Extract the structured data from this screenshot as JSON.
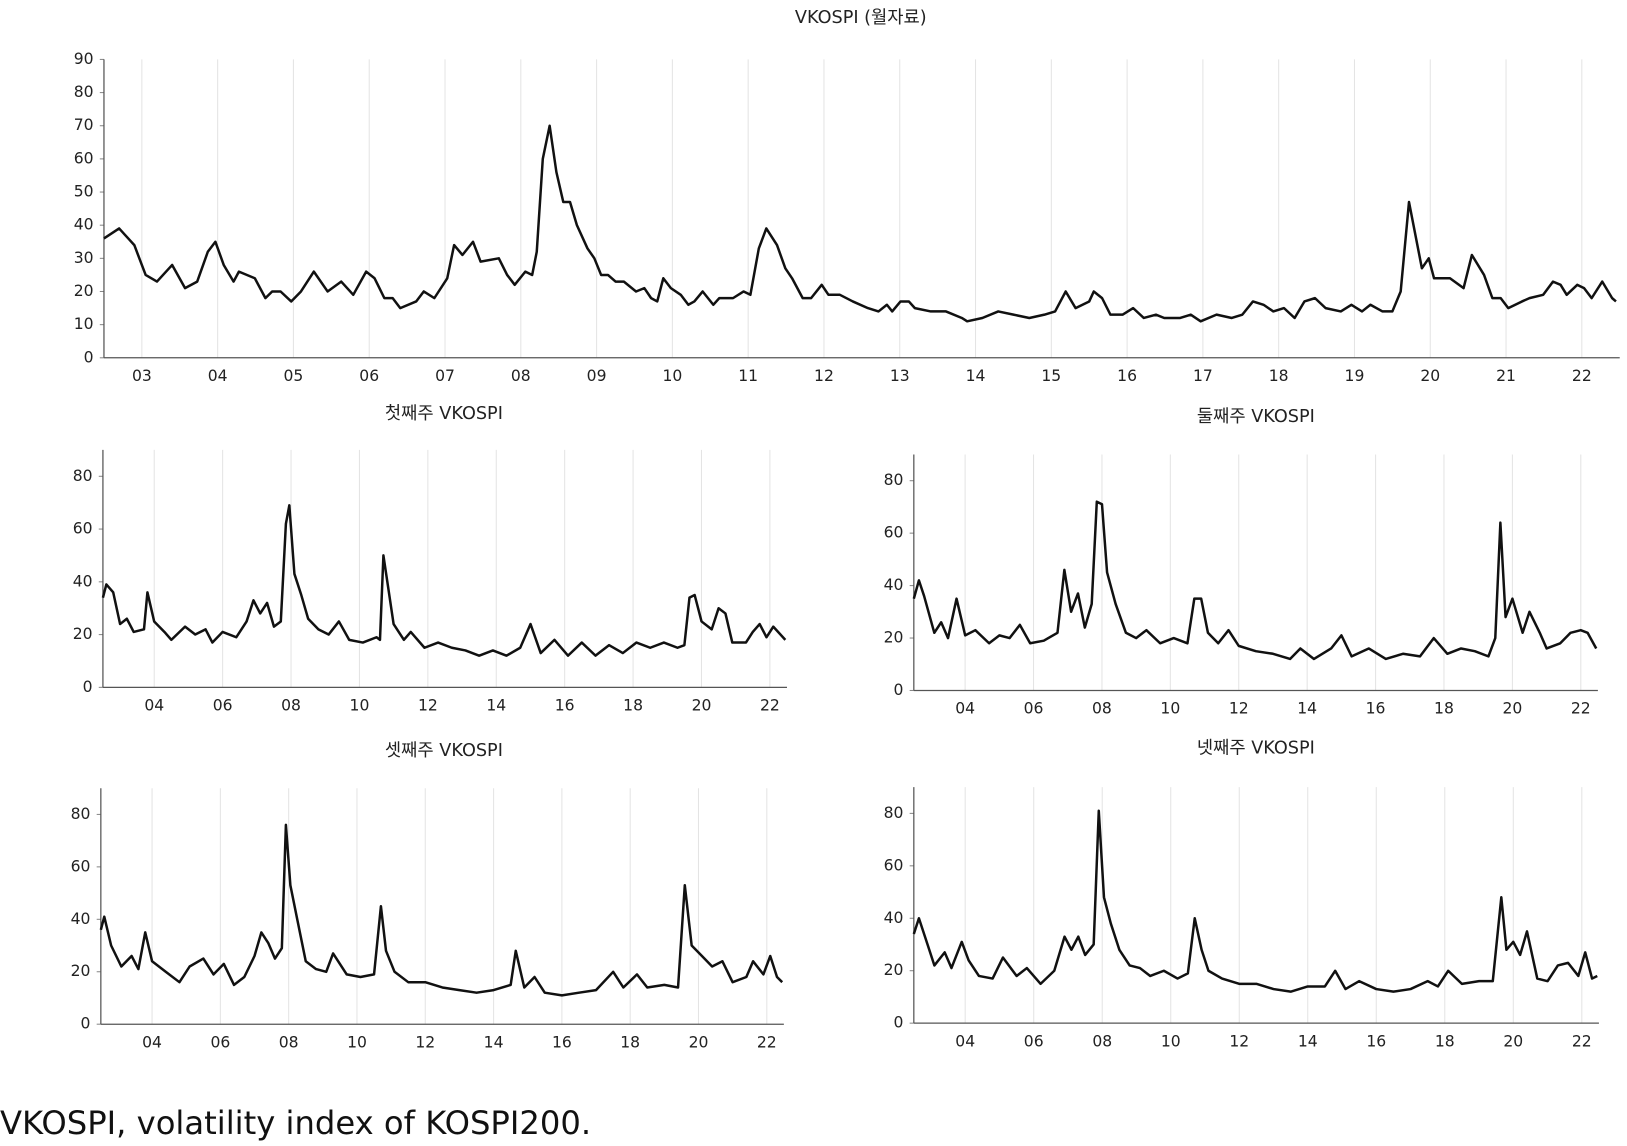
{
  "chart_data": [
    {
      "type": "line",
      "title": "VKOSPI (월자료)",
      "color": "#111111",
      "grid": "x",
      "xlim": [
        2003,
        2023
      ],
      "ylim": [
        0,
        90
      ],
      "yticks": [
        0,
        10,
        20,
        30,
        40,
        50,
        60,
        70,
        80,
        90
      ],
      "xticks": [
        {
          "value": 2003.5,
          "label": "03"
        },
        {
          "value": 2004.5,
          "label": "04"
        },
        {
          "value": 2005.5,
          "label": "05"
        },
        {
          "value": 2006.5,
          "label": "06"
        },
        {
          "value": 2007.5,
          "label": "07"
        },
        {
          "value": 2008.5,
          "label": "08"
        },
        {
          "value": 2009.5,
          "label": "09"
        },
        {
          "value": 2010.5,
          "label": "10"
        },
        {
          "value": 2011.5,
          "label": "11"
        },
        {
          "value": 2012.5,
          "label": "12"
        },
        {
          "value": 2013.5,
          "label": "13"
        },
        {
          "value": 2014.5,
          "label": "14"
        },
        {
          "value": 2015.5,
          "label": "15"
        },
        {
          "value": 2016.5,
          "label": "16"
        },
        {
          "value": 2017.5,
          "label": "17"
        },
        {
          "value": 2018.5,
          "label": "18"
        },
        {
          "value": 2019.5,
          "label": "19"
        },
        {
          "value": 2020.5,
          "label": "20"
        },
        {
          "value": 2021.5,
          "label": "21"
        },
        {
          "value": 2022.5,
          "label": "22"
        }
      ],
      "x": [
        2003.0,
        2003.2,
        2003.4,
        2003.55,
        2003.7,
        2003.9,
        2004.07,
        2004.23,
        2004.37,
        2004.47,
        2004.58,
        2004.71,
        2004.78,
        2004.99,
        2005.13,
        2005.22,
        2005.33,
        2005.47,
        2005.6,
        2005.77,
        2005.95,
        2006.13,
        2006.29,
        2006.46,
        2006.57,
        2006.7,
        2006.81,
        2006.91,
        2007.12,
        2007.22,
        2007.36,
        2007.53,
        2007.62,
        2007.73,
        2007.87,
        2007.97,
        2008.21,
        2008.32,
        2008.42,
        2008.56,
        2008.65,
        2008.71,
        2008.79,
        2008.88,
        2008.97,
        2009.06,
        2009.15,
        2009.24,
        2009.38,
        2009.47,
        2009.56,
        2009.65,
        2009.75,
        2009.86,
        2010.02,
        2010.13,
        2010.22,
        2010.3,
        2010.38,
        2010.48,
        2010.61,
        2010.71,
        2010.79,
        2010.9,
        2011.04,
        2011.12,
        2011.3,
        2011.44,
        2011.53,
        2011.64,
        2011.74,
        2011.88,
        2011.99,
        2012.08,
        2012.22,
        2012.33,
        2012.47,
        2012.56,
        2012.71,
        2012.88,
        2013.08,
        2013.22,
        2013.33,
        2013.4,
        2013.51,
        2013.62,
        2013.7,
        2013.91,
        2014.11,
        2014.32,
        2014.39,
        2014.59,
        2014.8,
        2015.0,
        2015.21,
        2015.41,
        2015.55,
        2015.69,
        2015.82,
        2016.0,
        2016.06,
        2016.17,
        2016.28,
        2016.44,
        2016.58,
        2016.72,
        2016.88,
        2016.99,
        2017.2,
        2017.34,
        2017.47,
        2017.68,
        2017.88,
        2018.02,
        2018.16,
        2018.3,
        2018.43,
        2018.57,
        2018.71,
        2018.84,
        2018.98,
        2019.12,
        2019.32,
        2019.46,
        2019.6,
        2019.71,
        2019.87,
        2020.0,
        2020.11,
        2020.22,
        2020.39,
        2020.48,
        2020.55,
        2020.76,
        2020.94,
        2021.05,
        2021.21,
        2021.32,
        2021.43,
        2021.53,
        2021.71,
        2021.81,
        2021.99,
        2022.12,
        2022.22,
        2022.3,
        2022.44,
        2022.53,
        2022.63,
        2022.77,
        2022.9,
        2022.95
      ],
      "values": [
        36,
        39,
        34,
        25,
        23,
        28,
        21,
        23,
        32,
        35,
        28,
        23,
        26,
        24,
        18,
        20,
        20,
        17,
        20,
        26,
        20,
        23,
        19,
        26,
        24,
        18,
        18,
        15,
        17,
        20,
        18,
        24,
        34,
        31,
        35,
        29,
        30,
        25,
        22,
        26,
        25,
        32,
        60,
        70,
        56,
        47,
        47,
        40,
        33,
        30,
        25,
        25,
        23,
        23,
        20,
        21,
        18,
        17,
        24,
        21,
        19,
        16,
        17,
        20,
        16,
        18,
        18,
        20,
        19,
        33,
        39,
        34,
        27,
        24,
        18,
        18,
        22,
        19,
        19,
        17,
        15,
        14,
        16,
        14,
        17,
        17,
        15,
        14,
        14,
        12,
        11,
        12,
        14,
        13,
        12,
        13,
        14,
        20,
        15,
        17,
        20,
        18,
        13,
        13,
        15,
        12,
        13,
        12,
        12,
        13,
        11,
        13,
        12,
        13,
        17,
        16,
        14,
        15,
        12,
        17,
        18,
        15,
        14,
        16,
        14,
        16,
        14,
        14,
        20,
        47,
        27,
        30,
        24,
        24,
        21,
        31,
        25,
        18,
        18,
        15,
        17,
        18,
        19,
        23,
        22,
        19,
        22,
        21,
        18,
        23,
        18,
        17
      ]
    },
    {
      "type": "line",
      "title": "첫째주 VKOSPI",
      "color": "#111111",
      "grid": "x",
      "xlim": [
        2003,
        2023
      ],
      "ylim": [
        0,
        90
      ],
      "yticks": [
        0,
        20,
        40,
        60,
        80
      ],
      "xticks": [
        {
          "value": 2004.5,
          "label": "04"
        },
        {
          "value": 2006.5,
          "label": "06"
        },
        {
          "value": 2008.5,
          "label": "08"
        },
        {
          "value": 2010.5,
          "label": "10"
        },
        {
          "value": 2012.5,
          "label": "12"
        },
        {
          "value": 2014.5,
          "label": "14"
        },
        {
          "value": 2016.5,
          "label": "16"
        },
        {
          "value": 2018.5,
          "label": "18"
        },
        {
          "value": 2020.5,
          "label": "20"
        },
        {
          "value": 2022.5,
          "label": "22"
        }
      ],
      "x": [
        2003.0,
        2003.1,
        2003.3,
        2003.5,
        2003.7,
        2003.9,
        2004.2,
        2004.3,
        2004.5,
        2004.8,
        2005.0,
        2005.4,
        2005.7,
        2006.0,
        2006.2,
        2006.5,
        2006.9,
        2007.2,
        2007.4,
        2007.6,
        2007.8,
        2008.0,
        2008.2,
        2008.35,
        2008.45,
        2008.6,
        2008.8,
        2009.0,
        2009.3,
        2009.6,
        2009.9,
        2010.2,
        2010.6,
        2011.0,
        2011.1,
        2011.2,
        2011.35,
        2011.5,
        2011.8,
        2012.0,
        2012.4,
        2012.8,
        2013.2,
        2013.6,
        2014.0,
        2014.4,
        2014.8,
        2015.2,
        2015.5,
        2015.8,
        2016.2,
        2016.6,
        2017.0,
        2017.4,
        2017.8,
        2018.2,
        2018.6,
        2019.0,
        2019.4,
        2019.8,
        2020.0,
        2020.15,
        2020.3,
        2020.5,
        2020.8,
        2021.0,
        2021.2,
        2021.4,
        2021.8,
        2022.0,
        2022.2,
        2022.4,
        2022.6,
        2022.95
      ],
      "values": [
        34,
        39,
        36,
        24,
        26,
        21,
        22,
        36,
        25,
        21,
        18,
        23,
        20,
        22,
        17,
        21,
        19,
        25,
        33,
        28,
        32,
        23,
        25,
        62,
        69,
        43,
        35,
        26,
        22,
        20,
        25,
        18,
        17,
        19,
        18,
        50,
        37,
        24,
        18,
        21,
        15,
        17,
        15,
        14,
        12,
        14,
        12,
        15,
        24,
        13,
        18,
        12,
        17,
        12,
        16,
        13,
        17,
        15,
        17,
        15,
        16,
        34,
        35,
        25,
        22,
        30,
        28,
        17,
        17,
        21,
        24,
        19,
        23,
        18
      ]
    },
    {
      "type": "line",
      "title": "둘째주 VKOSPI",
      "color": "#111111",
      "grid": "x",
      "xlim": [
        2003,
        2023
      ],
      "ylim": [
        0,
        90
      ],
      "yticks": [
        0,
        20,
        40,
        60,
        80
      ],
      "xticks": [
        {
          "value": 2004.5,
          "label": "04"
        },
        {
          "value": 2006.5,
          "label": "06"
        },
        {
          "value": 2008.5,
          "label": "08"
        },
        {
          "value": 2010.5,
          "label": "10"
        },
        {
          "value": 2012.5,
          "label": "12"
        },
        {
          "value": 2014.5,
          "label": "14"
        },
        {
          "value": 2016.5,
          "label": "16"
        },
        {
          "value": 2018.5,
          "label": "18"
        },
        {
          "value": 2020.5,
          "label": "20"
        },
        {
          "value": 2022.5,
          "label": "22"
        }
      ],
      "x": [
        2003.0,
        2003.15,
        2003.3,
        2003.6,
        2003.8,
        2004.0,
        2004.25,
        2004.5,
        2004.8,
        2005.2,
        2005.5,
        2005.8,
        2006.1,
        2006.4,
        2006.8,
        2007.2,
        2007.4,
        2007.6,
        2007.8,
        2008.0,
        2008.2,
        2008.35,
        2008.5,
        2008.65,
        2008.9,
        2009.2,
        2009.5,
        2009.8,
        2010.2,
        2010.6,
        2011.0,
        2011.2,
        2011.4,
        2011.6,
        2011.9,
        2012.2,
        2012.5,
        2013.0,
        2013.5,
        2014.0,
        2014.3,
        2014.7,
        2015.2,
        2015.5,
        2015.8,
        2016.3,
        2016.8,
        2017.3,
        2017.8,
        2018.2,
        2018.6,
        2019.0,
        2019.4,
        2019.8,
        2020.0,
        2020.15,
        2020.3,
        2020.5,
        2020.8,
        2021.0,
        2021.3,
        2021.5,
        2021.9,
        2022.2,
        2022.5,
        2022.7,
        2022.95
      ],
      "values": [
        35,
        42,
        36,
        22,
        26,
        20,
        35,
        21,
        23,
        18,
        21,
        20,
        25,
        18,
        19,
        22,
        46,
        30,
        37,
        24,
        33,
        72,
        71,
        45,
        33,
        22,
        20,
        23,
        18,
        20,
        18,
        35,
        35,
        22,
        18,
        23,
        17,
        15,
        14,
        12,
        16,
        12,
        16,
        21,
        13,
        16,
        12,
        14,
        13,
        20,
        14,
        16,
        15,
        13,
        20,
        64,
        28,
        35,
        22,
        30,
        22,
        16,
        18,
        22,
        23,
        22,
        16
      ]
    },
    {
      "type": "line",
      "title": "셋째주 VKOSPI",
      "color": "#111111",
      "grid": "x",
      "xlim": [
        2003,
        2023
      ],
      "ylim": [
        0,
        90
      ],
      "yticks": [
        0,
        20,
        40,
        60,
        80
      ],
      "xticks": [
        {
          "value": 2004.5,
          "label": "04"
        },
        {
          "value": 2006.5,
          "label": "06"
        },
        {
          "value": 2008.5,
          "label": "08"
        },
        {
          "value": 2010.5,
          "label": "10"
        },
        {
          "value": 2012.5,
          "label": "12"
        },
        {
          "value": 2014.5,
          "label": "14"
        },
        {
          "value": 2016.5,
          "label": "16"
        },
        {
          "value": 2018.5,
          "label": "18"
        },
        {
          "value": 2020.5,
          "label": "20"
        },
        {
          "value": 2022.5,
          "label": "22"
        }
      ],
      "x": [
        2003.0,
        2003.1,
        2003.3,
        2003.6,
        2003.9,
        2004.1,
        2004.3,
        2004.5,
        2004.9,
        2005.3,
        2005.6,
        2006.0,
        2006.3,
        2006.6,
        2006.9,
        2007.2,
        2007.5,
        2007.7,
        2007.9,
        2008.1,
        2008.3,
        2008.42,
        2008.55,
        2008.75,
        2009.0,
        2009.3,
        2009.6,
        2009.8,
        2010.2,
        2010.6,
        2011.0,
        2011.2,
        2011.35,
        2011.6,
        2012.0,
        2012.5,
        2013.0,
        2013.5,
        2014.0,
        2014.5,
        2015.0,
        2015.15,
        2015.4,
        2015.7,
        2016.0,
        2016.5,
        2017.0,
        2017.5,
        2018.0,
        2018.3,
        2018.7,
        2019.0,
        2019.5,
        2019.9,
        2020.1,
        2020.3,
        2020.6,
        2020.9,
        2021.2,
        2021.5,
        2021.9,
        2022.1,
        2022.4,
        2022.6,
        2022.8,
        2022.95
      ],
      "values": [
        36,
        41,
        30,
        22,
        26,
        21,
        35,
        24,
        20,
        16,
        22,
        25,
        19,
        23,
        15,
        18,
        26,
        35,
        31,
        25,
        29,
        76,
        53,
        40,
        24,
        21,
        20,
        27,
        19,
        18,
        19,
        45,
        28,
        20,
        16,
        16,
        14,
        13,
        12,
        13,
        15,
        28,
        14,
        18,
        12,
        11,
        12,
        13,
        20,
        14,
        19,
        14,
        15,
        14,
        53,
        30,
        26,
        22,
        24,
        16,
        18,
        24,
        19,
        26,
        18,
        16
      ]
    },
    {
      "type": "line",
      "title": "넷째주 VKOSPI",
      "color": "#111111",
      "grid": "x",
      "xlim": [
        2003,
        2023
      ],
      "ylim": [
        0,
        90
      ],
      "yticks": [
        0,
        20,
        40,
        60,
        80
      ],
      "xticks": [
        {
          "value": 2004.5,
          "label": "04"
        },
        {
          "value": 2006.5,
          "label": "06"
        },
        {
          "value": 2008.5,
          "label": "08"
        },
        {
          "value": 2010.5,
          "label": "10"
        },
        {
          "value": 2012.5,
          "label": "12"
        },
        {
          "value": 2014.5,
          "label": "14"
        },
        {
          "value": 2016.5,
          "label": "16"
        },
        {
          "value": 2018.5,
          "label": "18"
        },
        {
          "value": 2020.5,
          "label": "20"
        },
        {
          "value": 2022.5,
          "label": "22"
        }
      ],
      "x": [
        2003.0,
        2003.15,
        2003.4,
        2003.6,
        2003.9,
        2004.1,
        2004.4,
        2004.6,
        2004.9,
        2005.3,
        2005.6,
        2006.0,
        2006.3,
        2006.7,
        2007.1,
        2007.4,
        2007.6,
        2007.8,
        2008.0,
        2008.25,
        2008.4,
        2008.55,
        2008.75,
        2009.0,
        2009.3,
        2009.6,
        2009.9,
        2010.3,
        2010.7,
        2011.0,
        2011.2,
        2011.4,
        2011.6,
        2012.0,
        2012.5,
        2013.0,
        2013.5,
        2014.0,
        2014.5,
        2015.0,
        2015.3,
        2015.6,
        2016.0,
        2016.5,
        2017.0,
        2017.5,
        2018.0,
        2018.3,
        2018.6,
        2019.0,
        2019.5,
        2019.9,
        2020.15,
        2020.3,
        2020.5,
        2020.7,
        2020.9,
        2021.2,
        2021.5,
        2021.8,
        2022.1,
        2022.4,
        2022.6,
        2022.8,
        2022.95
      ],
      "values": [
        34,
        40,
        30,
        22,
        27,
        21,
        31,
        24,
        18,
        17,
        25,
        18,
        21,
        15,
        20,
        33,
        28,
        33,
        26,
        30,
        81,
        48,
        38,
        28,
        22,
        21,
        18,
        20,
        17,
        19,
        40,
        28,
        20,
        17,
        15,
        15,
        13,
        12,
        14,
        14,
        20,
        13,
        16,
        13,
        12,
        13,
        16,
        14,
        20,
        15,
        16,
        16,
        48,
        28,
        31,
        26,
        35,
        17,
        16,
        22,
        23,
        18,
        27,
        17,
        18
      ]
    }
  ],
  "caption": "VKOSPI, volatility index of KOSPI200."
}
